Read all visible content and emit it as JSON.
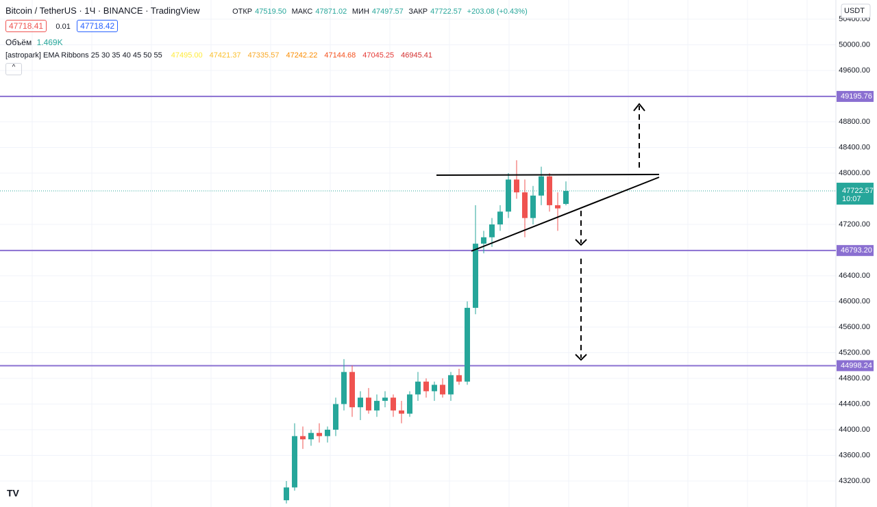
{
  "header": {
    "symbol": "Bitcoin / TetherUS · 1Ч · BINANCE · TradingView",
    "open_label": "ОТКР",
    "open": "47519.50",
    "high_label": "МАКС",
    "high": "47871.02",
    "low_label": "МИН",
    "low": "47497.57",
    "close_label": "ЗАКР",
    "close": "47722.57",
    "change": "+203.08 (+0.43%)",
    "bid": "47718.41",
    "spread": "0.01",
    "ask": "47718.42",
    "volume_label": "Объём",
    "volume": "1.469K",
    "indicator": "[astropark] EMA Ribbons 25 30 35 40 45 50 55",
    "ema_values": [
      "47495.00",
      "47421.37",
      "47335.57",
      "47242.22",
      "47144.68",
      "47045.25",
      "46945.41"
    ],
    "ema_colors": [
      "#ffeb3b",
      "#fbc02d",
      "#f9a825",
      "#fb8c00",
      "#f4511e",
      "#e53935",
      "#d32f2f"
    ],
    "currency": "USDT"
  },
  "chart": {
    "type": "candlestick",
    "ylim": [
      42795,
      50699
    ],
    "yticks": [
      {
        "value": 50400,
        "label": "50400.00"
      },
      {
        "value": 50000,
        "label": "50000.00"
      },
      {
        "value": 49600,
        "label": "49600.00"
      },
      {
        "value": 48800,
        "label": "48800.00"
      },
      {
        "value": 48400,
        "label": "48400.00"
      },
      {
        "value": 48000,
        "label": "48000.00"
      },
      {
        "value": 47200,
        "label": "47200.00"
      },
      {
        "value": 46400,
        "label": "46400.00"
      },
      {
        "value": 46000,
        "label": "46000.00"
      },
      {
        "value": 45600,
        "label": "45600.00"
      },
      {
        "value": 45200,
        "label": "45200.00"
      },
      {
        "value": 44800,
        "label": "44800.00"
      },
      {
        "value": 44400,
        "label": "44400.00"
      },
      {
        "value": 44000,
        "label": "44000.00"
      },
      {
        "value": 43600,
        "label": "43600.00"
      },
      {
        "value": 43200,
        "label": "43200.00"
      }
    ],
    "levels": [
      {
        "value": 49195.76,
        "label": "49195.76"
      },
      {
        "value": 46793.2,
        "label": "46793.20"
      },
      {
        "value": 44998.24,
        "label": "44998.24"
      }
    ],
    "last_price": {
      "value": 47722.57,
      "label": "47722.57",
      "countdown": "10:07"
    },
    "up_color": "#26a69a",
    "down_color": "#ef5350",
    "level_color": "#8a6fd1",
    "ohlc": [
      [
        42900,
        43200,
        42850,
        43100
      ],
      [
        43100,
        44100,
        43050,
        43900
      ],
      [
        43900,
        44050,
        43700,
        43850
      ],
      [
        43850,
        44000,
        43750,
        43950
      ],
      [
        43950,
        44100,
        43800,
        43900
      ],
      [
        43900,
        44050,
        43800,
        44000
      ],
      [
        44000,
        44500,
        43900,
        44400
      ],
      [
        44400,
        45100,
        44300,
        44900
      ],
      [
        44900,
        45000,
        44200,
        44350
      ],
      [
        44350,
        44600,
        44150,
        44500
      ],
      [
        44500,
        44650,
        44250,
        44300
      ],
      [
        44300,
        44550,
        44200,
        44450
      ],
      [
        44450,
        44600,
        44350,
        44500
      ],
      [
        44500,
        44550,
        44200,
        44300
      ],
      [
        44300,
        44450,
        44100,
        44250
      ],
      [
        44250,
        44600,
        44200,
        44550
      ],
      [
        44550,
        44900,
        44450,
        44750
      ],
      [
        44750,
        44800,
        44500,
        44600
      ],
      [
        44600,
        44750,
        44450,
        44700
      ],
      [
        44700,
        44800,
        44500,
        44550
      ],
      [
        44550,
        44900,
        44450,
        44850
      ],
      [
        44850,
        44950,
        44700,
        44750
      ],
      [
        44750,
        46000,
        44700,
        45900
      ],
      [
        45900,
        47500,
        45800,
        46900
      ],
      [
        46900,
        47100,
        46750,
        47000
      ],
      [
        47000,
        47300,
        46850,
        47200
      ],
      [
        47200,
        47500,
        47100,
        47400
      ],
      [
        47400,
        48000,
        47300,
        47900
      ],
      [
        47900,
        48200,
        47600,
        47700
      ],
      [
        47700,
        47900,
        47000,
        47300
      ],
      [
        47300,
        47800,
        47200,
        47650
      ],
      [
        47650,
        48100,
        47500,
        47950
      ],
      [
        47950,
        48000,
        47400,
        47500
      ],
      [
        47500,
        47700,
        47100,
        47450
      ],
      [
        47519.5,
        47871.02,
        47497.57,
        47722.57
      ]
    ]
  }
}
